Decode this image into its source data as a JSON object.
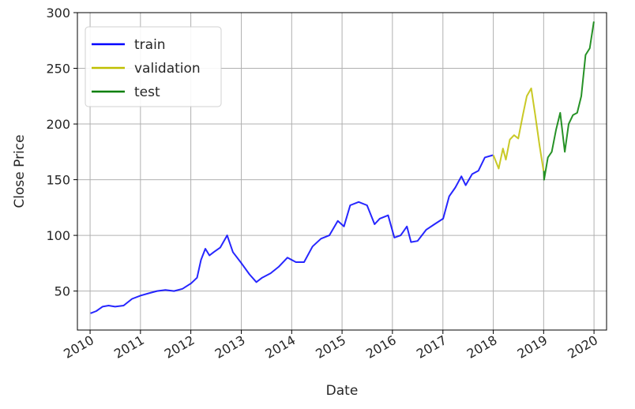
{
  "chart_data": {
    "type": "line",
    "title": "",
    "xlabel": "Date",
    "ylabel": "Close Price",
    "xlim": [
      "2009-10-01",
      "2020-04-01"
    ],
    "ylim": [
      15,
      300
    ],
    "grid": true,
    "legend_position": "top-left",
    "x_ticks": [
      "2010",
      "2011",
      "2012",
      "2013",
      "2014",
      "2015",
      "2016",
      "2017",
      "2018",
      "2019",
      "2020"
    ],
    "y_ticks": [
      50,
      100,
      150,
      200,
      250,
      300
    ],
    "series": [
      {
        "name": "train",
        "color": "#0000ff",
        "points": [
          [
            "2010-01-04",
            30
          ],
          [
            "2010-02-15",
            32
          ],
          [
            "2010-04-01",
            36
          ],
          [
            "2010-05-15",
            37
          ],
          [
            "2010-07-01",
            36
          ],
          [
            "2010-09-01",
            37
          ],
          [
            "2010-11-01",
            43
          ],
          [
            "2011-01-03",
            46
          ],
          [
            "2011-03-01",
            48
          ],
          [
            "2011-05-01",
            50
          ],
          [
            "2011-07-01",
            51
          ],
          [
            "2011-09-01",
            50
          ],
          [
            "2011-11-01",
            52
          ],
          [
            "2012-01-03",
            57
          ],
          [
            "2012-02-15",
            62
          ],
          [
            "2012-03-15",
            78
          ],
          [
            "2012-04-15",
            88
          ],
          [
            "2012-05-15",
            82
          ],
          [
            "2012-06-15",
            85
          ],
          [
            "2012-08-01",
            89
          ],
          [
            "2012-09-20",
            100
          ],
          [
            "2012-11-01",
            85
          ],
          [
            "2013-01-02",
            75
          ],
          [
            "2013-03-01",
            65
          ],
          [
            "2013-04-20",
            58
          ],
          [
            "2013-06-01",
            62
          ],
          [
            "2013-08-01",
            66
          ],
          [
            "2013-10-01",
            72
          ],
          [
            "2013-12-01",
            80
          ],
          [
            "2014-02-01",
            76
          ],
          [
            "2014-04-01",
            76
          ],
          [
            "2014-06-01",
            90
          ],
          [
            "2014-08-01",
            97
          ],
          [
            "2014-10-01",
            100
          ],
          [
            "2014-12-01",
            113
          ],
          [
            "2015-01-15",
            108
          ],
          [
            "2015-03-01",
            127
          ],
          [
            "2015-05-01",
            130
          ],
          [
            "2015-07-01",
            127
          ],
          [
            "2015-08-25",
            110
          ],
          [
            "2015-10-01",
            115
          ],
          [
            "2015-12-01",
            118
          ],
          [
            "2016-01-15",
            98
          ],
          [
            "2016-03-01",
            100
          ],
          [
            "2016-04-15",
            108
          ],
          [
            "2016-05-15",
            94
          ],
          [
            "2016-07-01",
            95
          ],
          [
            "2016-09-01",
            105
          ],
          [
            "2016-11-01",
            110
          ],
          [
            "2017-01-03",
            115
          ],
          [
            "2017-02-15",
            135
          ],
          [
            "2017-04-01",
            143
          ],
          [
            "2017-05-15",
            153
          ],
          [
            "2017-06-15",
            145
          ],
          [
            "2017-08-01",
            155
          ],
          [
            "2017-09-15",
            158
          ],
          [
            "2017-11-01",
            170
          ],
          [
            "2017-12-29",
            172
          ]
        ]
      },
      {
        "name": "validation",
        "color": "#bfbf00",
        "points": [
          [
            "2018-01-02",
            172
          ],
          [
            "2018-02-09",
            160
          ],
          [
            "2018-03-12",
            178
          ],
          [
            "2018-04-02",
            168
          ],
          [
            "2018-05-01",
            186
          ],
          [
            "2018-06-01",
            190
          ],
          [
            "2018-07-01",
            187
          ],
          [
            "2018-08-03",
            208
          ],
          [
            "2018-09-01",
            225
          ],
          [
            "2018-10-03",
            232
          ],
          [
            "2018-11-01",
            208
          ],
          [
            "2018-12-03",
            180
          ],
          [
            "2018-12-31",
            158
          ]
        ]
      },
      {
        "name": "test",
        "color": "#007f00",
        "points": [
          [
            "2019-01-02",
            158
          ],
          [
            "2019-01-04",
            150
          ],
          [
            "2019-02-01",
            170
          ],
          [
            "2019-03-01",
            175
          ],
          [
            "2019-04-01",
            195
          ],
          [
            "2019-05-01",
            210
          ],
          [
            "2019-06-03",
            175
          ],
          [
            "2019-07-01",
            200
          ],
          [
            "2019-08-01",
            208
          ],
          [
            "2019-09-01",
            210
          ],
          [
            "2019-10-01",
            225
          ],
          [
            "2019-11-01",
            262
          ],
          [
            "2019-12-01",
            268
          ],
          [
            "2019-12-31",
            292
          ]
        ]
      }
    ]
  }
}
